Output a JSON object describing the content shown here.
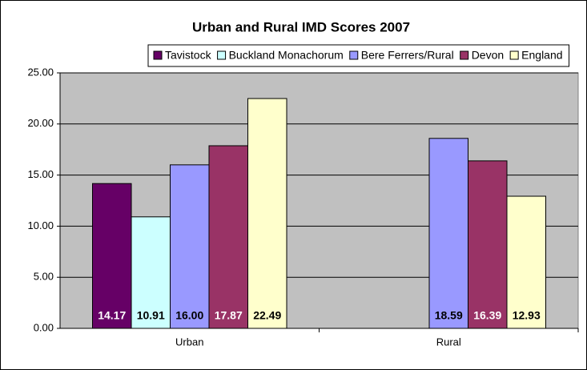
{
  "chart_data": {
    "type": "bar",
    "title": "Urban and Rural IMD Scores 2007",
    "categories": [
      "Urban",
      "Rural"
    ],
    "series": [
      {
        "name": "Tavistock",
        "color": "#660066",
        "values": [
          14.17,
          null
        ],
        "value_labels": [
          "14.17",
          null
        ]
      },
      {
        "name": "Buckland Monachorum",
        "color": "#ccffff",
        "values": [
          10.91,
          null
        ],
        "value_labels": [
          "10.91",
          null
        ]
      },
      {
        "name": "Bere Ferrers/Rural",
        "color": "#9999ff",
        "values": [
          16.0,
          18.59
        ],
        "value_labels": [
          "16.00",
          "18.59"
        ]
      },
      {
        "name": "Devon",
        "color": "#993366",
        "values": [
          17.87,
          16.39
        ],
        "value_labels": [
          "17.87",
          "16.39"
        ]
      },
      {
        "name": "England",
        "color": "#ffffcc",
        "values": [
          22.49,
          12.93
        ],
        "value_labels": [
          "22.49",
          "12.93"
        ]
      }
    ],
    "ylim": [
      0,
      25
    ],
    "yticks": [
      {
        "value": 0,
        "label": "0.00"
      },
      {
        "value": 5,
        "label": "5.00"
      },
      {
        "value": 10,
        "label": "10.00"
      },
      {
        "value": 15,
        "label": "15.00"
      },
      {
        "value": 20,
        "label": "20.00"
      },
      {
        "value": 25,
        "label": "25.00"
      }
    ],
    "grid": true,
    "legend": "top",
    "plot_background": "#c0c0c0"
  }
}
